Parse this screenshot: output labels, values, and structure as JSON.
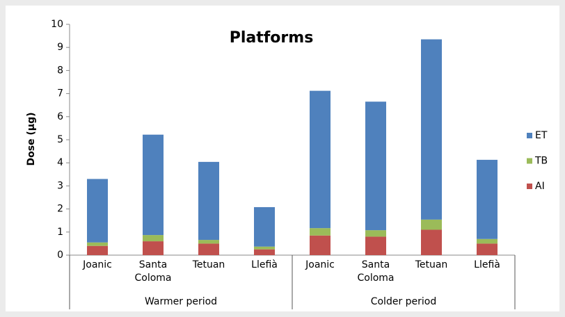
{
  "chart_data": {
    "type": "stacked_bar",
    "title": "Platforms",
    "y_label": "Dose (µg)",
    "categories": [
      "Joanic",
      "Santa Coloma",
      "Tetuan",
      "Llefià",
      "Joanic",
      "Santa Coloma",
      "Tetuan",
      "Llefià"
    ],
    "groups": [
      "Warmer period",
      "Colder period"
    ],
    "series": [
      {
        "name": "AI",
        "color": "#c0504d",
        "values": [
          0.4,
          0.6,
          0.5,
          0.25,
          0.85,
          0.8,
          1.1,
          0.5
        ]
      },
      {
        "name": "TB",
        "color": "#9bbb59",
        "values": [
          0.15,
          0.27,
          0.16,
          0.12,
          0.32,
          0.28,
          0.44,
          0.2
        ]
      },
      {
        "name": "ET",
        "color": "#4f81bd",
        "values": [
          2.75,
          4.35,
          3.38,
          1.71,
          5.95,
          5.57,
          7.81,
          3.43
        ]
      }
    ],
    "ylim": [
      0,
      10
    ],
    "yticks": [
      0,
      1,
      2,
      3,
      4,
      5,
      6,
      7,
      8,
      9,
      10
    ],
    "legend": "right"
  }
}
